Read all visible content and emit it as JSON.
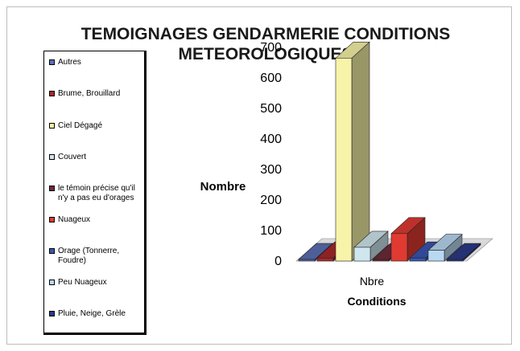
{
  "chart_data": {
    "type": "bar",
    "title": "TEMOIGNAGES GENDARMERIE CONDITIONS METEOROLOGIQUES",
    "title_lines": [
      "TEMOIGNAGES GENDARMERIE CONDITIONS",
      "METEOROLOGIQUES"
    ],
    "xlabel": "Conditions",
    "ylabel": "Nombre",
    "categories": [
      "Nbre"
    ],
    "ylim": [
      0,
      700
    ],
    "yticks": [
      0,
      100,
      200,
      300,
      400,
      500,
      600,
      700
    ],
    "grid": false,
    "legend_position": "left",
    "three_d": true,
    "series": [
      {
        "name": "Autres",
        "values": [
          5
        ],
        "color": "#5b6fb4"
      },
      {
        "name": "Brume, Brouillard",
        "values": [
          10
        ],
        "color": "#a8282c"
      },
      {
        "name": "Ciel Dégagé",
        "values": [
          665
        ],
        "color": "#f7f3a8"
      },
      {
        "name": "Couvert",
        "values": [
          45
        ],
        "color": "#cfe6ee"
      },
      {
        "name": "le témoin précise qu'il n'y a pas eu d'orages",
        "values": [
          5
        ],
        "color": "#6e2a3a"
      },
      {
        "name": "Nuageux",
        "values": [
          90
        ],
        "color": "#e03a32"
      },
      {
        "name": "Orage (Tonnerre, Foudre)",
        "values": [
          10
        ],
        "color": "#3a56b0"
      },
      {
        "name": "Peu Nuageux",
        "values": [
          35
        ],
        "color": "#b9d8f2"
      },
      {
        "name": "Pluie, Neige, Grèle",
        "values": [
          5
        ],
        "color": "#2a3a8a"
      }
    ]
  }
}
